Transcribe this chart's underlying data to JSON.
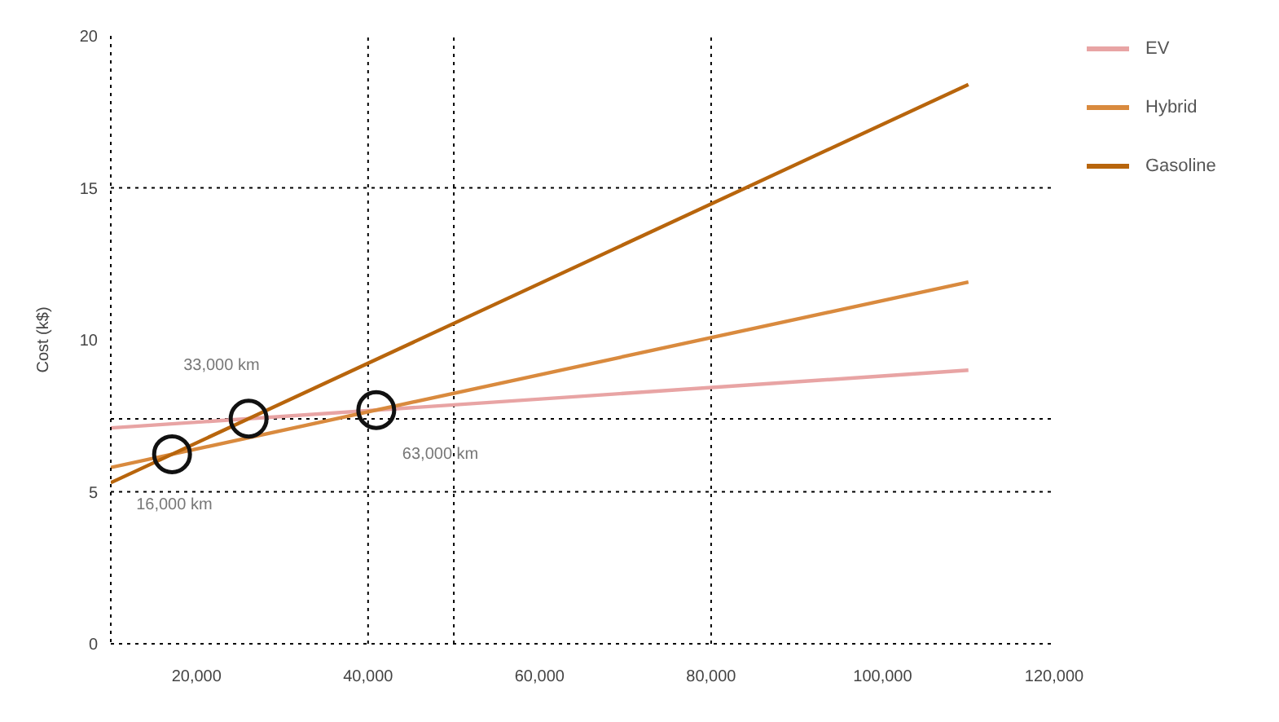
{
  "chart_data": {
    "type": "line",
    "ylabel": "Cost (k$)",
    "x": [
      10000,
      110000
    ],
    "series": [
      {
        "name": "EV",
        "color": "#e8a4a4",
        "values": [
          7.1,
          9.0
        ]
      },
      {
        "name": "Hybrid",
        "color": "#d98a3e",
        "values": [
          5.8,
          11.9
        ]
      },
      {
        "name": "Gasoline",
        "color": "#b8650c",
        "values": [
          5.3,
          18.4
        ]
      }
    ],
    "xlim": [
      10000,
      120000
    ],
    "xticks": [
      {
        "value": 20000,
        "label": "20,000"
      },
      {
        "value": 40000,
        "label": "40,000"
      },
      {
        "value": 60000,
        "label": "60,000"
      },
      {
        "value": 80000,
        "label": "80,000"
      },
      {
        "value": 100000,
        "label": "100,000"
      },
      {
        "value": 120000,
        "label": "120,000"
      }
    ],
    "ylim": [
      0,
      20
    ],
    "yticks": [
      0,
      5,
      10,
      15,
      20
    ],
    "ref_lines": [
      {
        "axis": "y",
        "value": 15
      },
      {
        "axis": "y",
        "value": 5
      },
      {
        "axis": "y",
        "value": 7.4
      },
      {
        "axis": "x",
        "value": 40000
      },
      {
        "axis": "x",
        "value": 50000
      },
      {
        "axis": "x",
        "value": 80000
      }
    ],
    "annotations": [
      "16,000 km",
      "33,000 km",
      "63,000 km"
    ],
    "grid": false,
    "legend": "top right",
    "marker": "none",
    "line_style": "solid"
  }
}
